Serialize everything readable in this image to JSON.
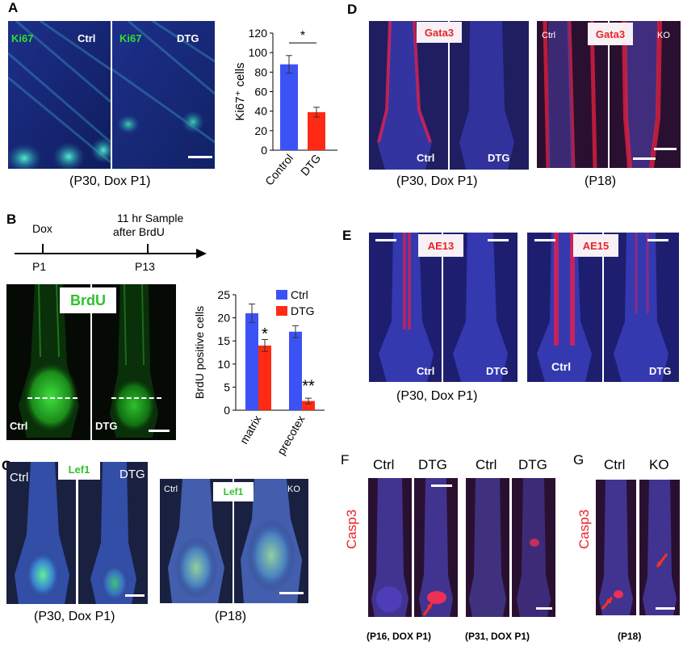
{
  "panels": {
    "a": "A",
    "b": "B",
    "c": "C",
    "d": "D",
    "e": "E",
    "f": "F",
    "g": "G"
  },
  "panel_a": {
    "ctrl_marker": "Ki67",
    "ctrl_label": "Ctrl",
    "dtg_marker": "Ki67",
    "dtg_label": "DTG",
    "caption": "(P30, Dox P1)"
  },
  "panel_b": {
    "timeline": {
      "dox": "Dox",
      "p1": "P1",
      "p13": "P13",
      "sample_line1": "11 hr Sample",
      "sample_line2": "after BrdU"
    },
    "marker": "BrdU",
    "ctrl_label": "Ctrl",
    "dtg_label": "DTG"
  },
  "panel_c": {
    "left_ctrl": "Ctrl",
    "left_marker": "Lef1",
    "left_dtg": "DTG",
    "right_ctrl": "Ctrl",
    "right_marker": "Lef1",
    "right_ko": "KO",
    "caption_left": "(P30, Dox P1)",
    "caption_right": "(P18)"
  },
  "panel_d": {
    "left_marker": "Gata3",
    "left_ctrl": "Ctrl",
    "left_dtg": "DTG",
    "right_ctrl": "Ctrl",
    "right_marker": "Gata3",
    "right_ko": "KO",
    "caption_left": "(P30, Dox P1)",
    "caption_right": "(P18)"
  },
  "panel_e": {
    "ae13": "AE13",
    "ae15": "AE15",
    "ctrl1": "Ctrl",
    "dtg1": "DTG",
    "ctrl2": "Ctrl",
    "dtg2": "DTG",
    "caption": "(P30, Dox P1)"
  },
  "panel_f": {
    "ctrl1": "Ctrl",
    "dtg1": "DTG",
    "ctrl2": "Ctrl",
    "dtg2": "DTG",
    "ylabel": "Casp3",
    "caption_left": "(P16, DOX P1)",
    "caption_right": "(P31, DOX P1)"
  },
  "panel_g": {
    "ctrl": "Ctrl",
    "ko": "KO",
    "ylabel": "Casp3",
    "caption": "(P18)"
  },
  "colors": {
    "blue": "#3b53f5",
    "red": "#ff2a14",
    "green": "#2fc12f",
    "label_red": "#e8242b"
  },
  "chart_data": [
    {
      "type": "bar",
      "categories": [
        "Control",
        "DTG"
      ],
      "series": [
        {
          "values": [
            88,
            39
          ],
          "errors": [
            9,
            5
          ],
          "colors": [
            "#3b53f5",
            "#ff2a14"
          ]
        }
      ],
      "ylabel": "Ki67⁺ cells",
      "ylim": [
        0,
        120
      ],
      "yticks": [
        0,
        20,
        40,
        60,
        80,
        100,
        120
      ],
      "annotations": [
        "*"
      ]
    },
    {
      "type": "bar",
      "categories": [
        "matrix",
        "precotex"
      ],
      "series": [
        {
          "name": "Ctrl",
          "values": [
            21,
            17
          ],
          "errors": [
            2,
            1.3
          ],
          "color": "#3b53f5"
        },
        {
          "name": "DTG",
          "values": [
            14,
            2
          ],
          "errors": [
            1.3,
            0.6
          ],
          "color": "#ff2a14"
        }
      ],
      "ylabel": "BrdU positive cells",
      "ylim": [
        0,
        25
      ],
      "yticks": [
        0,
        5,
        10,
        15,
        20,
        25
      ],
      "annotations": [
        "*",
        "**"
      ],
      "legend": "top-right"
    }
  ]
}
